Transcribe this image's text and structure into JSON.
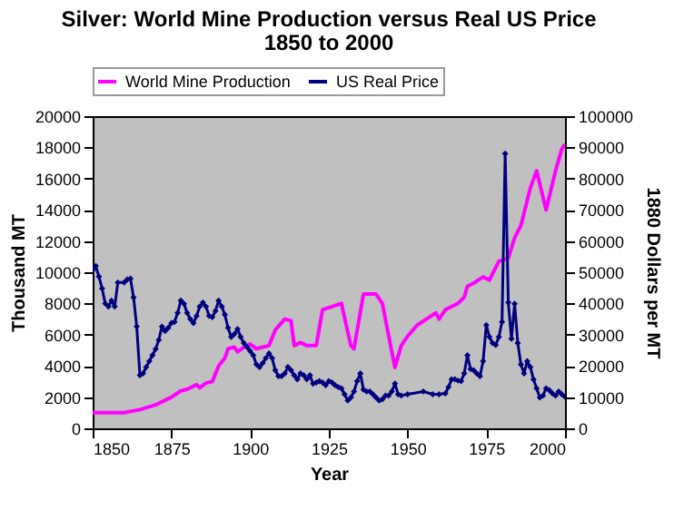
{
  "chart_data": {
    "type": "line",
    "title": "Silver: World Mine Production versus Real US Price",
    "subtitle": "1850 to 2000",
    "xlabel": "Year",
    "ylabel": "Thousand MT",
    "y2label": "1880 Dollars per MT",
    "xlim": [
      1850,
      2000
    ],
    "xticks": [
      1850,
      1875,
      1900,
      1925,
      1950,
      1975,
      2000
    ],
    "ylim": [
      0,
      20000
    ],
    "yticks": [
      0,
      2000,
      4000,
      6000,
      8000,
      10000,
      12000,
      14000,
      16000,
      18000,
      20000
    ],
    "y2lim": [
      0,
      100000
    ],
    "y2ticks": [
      0,
      10000,
      20000,
      30000,
      40000,
      50000,
      60000,
      70000,
      80000,
      90000,
      100000
    ],
    "grid": false,
    "legend": "top",
    "series": [
      {
        "name": "World Mine Production",
        "color": "#ff00ff",
        "marker": "none",
        "x": [
          1850,
          1860,
          1865,
          1870,
          1875,
          1878,
          1880,
          1883,
          1884,
          1886,
          1888,
          1890,
          1892,
          1893,
          1895,
          1896,
          1898,
          1900,
          1902,
          1904,
          1906,
          1908,
          1911,
          1913,
          1914,
          1916,
          1918,
          1921,
          1923,
          1926,
          1929,
          1932,
          1933,
          1936,
          1940,
          1942,
          1945,
          1946,
          1948,
          1950,
          1953,
          1956,
          1959,
          1960,
          1962,
          1966,
          1968,
          1969,
          1971,
          1974,
          1976,
          1979,
          1982,
          1984,
          1986,
          1989,
          1991,
          1994,
          1997,
          1999,
          2000
        ],
        "values": [
          1000,
          1000,
          1200,
          1500,
          2000,
          2400,
          2500,
          2800,
          2600,
          2900,
          3000,
          4000,
          4500,
          5100,
          5200,
          4900,
          5200,
          5400,
          5100,
          5200,
          5300,
          6300,
          7000,
          6900,
          5300,
          5500,
          5300,
          5300,
          7600,
          7800,
          8000,
          5300,
          5100,
          8600,
          8600,
          8000,
          4900,
          3900,
          5300,
          5900,
          6600,
          7000,
          7400,
          7000,
          7600,
          8000,
          8400,
          9100,
          9300,
          9700,
          9500,
          10700,
          10900,
          12200,
          13000,
          15400,
          16500,
          14000,
          16500,
          17900,
          18200
        ]
      },
      {
        "name": "US Real Price",
        "color": "#000080",
        "marker": "diamond",
        "axis": "y2",
        "x": [
          1850,
          1851,
          1852,
          1853,
          1854,
          1855,
          1856,
          1857,
          1858,
          1860,
          1861,
          1862,
          1863,
          1864,
          1865,
          1866,
          1867,
          1868,
          1869,
          1870,
          1871,
          1872,
          1873,
          1874,
          1875,
          1876,
          1877,
          1878,
          1879,
          1880,
          1881,
          1882,
          1883,
          1884,
          1885,
          1886,
          1887,
          1888,
          1889,
          1890,
          1891,
          1892,
          1893,
          1894,
          1895,
          1896,
          1897,
          1898,
          1899,
          1900,
          1901,
          1902,
          1903,
          1904,
          1905,
          1906,
          1907,
          1908,
          1909,
          1910,
          1911,
          1912,
          1913,
          1914,
          1915,
          1916,
          1917,
          1918,
          1919,
          1920,
          1921,
          1922,
          1923,
          1924,
          1925,
          1926,
          1927,
          1928,
          1929,
          1930,
          1931,
          1932,
          1933,
          1934,
          1935,
          1936,
          1937,
          1938,
          1939,
          1940,
          1941,
          1942,
          1943,
          1944,
          1945,
          1946,
          1947,
          1948,
          1950,
          1955,
          1958,
          1960,
          1962,
          1963,
          1964,
          1965,
          1966,
          1967,
          1968,
          1969,
          1970,
          1971,
          1972,
          1973,
          1974,
          1975,
          1976,
          1977,
          1978,
          1979,
          1980,
          1981,
          1982,
          1983,
          1984,
          1985,
          1986,
          1987,
          1988,
          1989,
          1990,
          1991,
          1992,
          1993,
          1994,
          1995,
          1996,
          1997,
          1998,
          1999,
          2000
        ],
        "values": [
          50600,
          52000,
          48600,
          44800,
          40000,
          39000,
          40900,
          39000,
          46700,
          46700,
          47700,
          48000,
          41900,
          32600,
          17000,
          17600,
          19600,
          21500,
          23400,
          25400,
          28300,
          32600,
          31200,
          32200,
          33700,
          34100,
          37000,
          40900,
          39900,
          37000,
          35000,
          33700,
          36000,
          39000,
          40300,
          39000,
          36000,
          35600,
          37600,
          40900,
          39000,
          36400,
          32200,
          29300,
          30200,
          31800,
          29300,
          27300,
          26000,
          24800,
          23400,
          20500,
          19600,
          20900,
          22500,
          24000,
          22500,
          18600,
          16700,
          16700,
          17600,
          19600,
          18600,
          17000,
          15700,
          17600,
          17000,
          15700,
          17000,
          14300,
          14700,
          15100,
          14700,
          13800,
          15100,
          14700,
          13800,
          13200,
          12800,
          10900,
          8900,
          9900,
          11800,
          15100,
          17600,
          12400,
          11800,
          11800,
          10900,
          9900,
          8900,
          9300,
          10500,
          10500,
          11800,
          14300,
          10900,
          10500,
          10900,
          11800,
          10900,
          10900,
          11200,
          13200,
          15700,
          15700,
          15300,
          15100,
          17600,
          23400,
          19000,
          18600,
          17600,
          16700,
          21500,
          33100,
          29300,
          27300,
          26700,
          29300,
          34100,
          88000,
          40300,
          28700,
          39900,
          27300,
          20500,
          17600,
          21500,
          19600,
          15700,
          12800,
          9900,
          10500,
          12800,
          12200,
          11200,
          10500,
          11800,
          10900,
          10100
        ]
      }
    ]
  }
}
